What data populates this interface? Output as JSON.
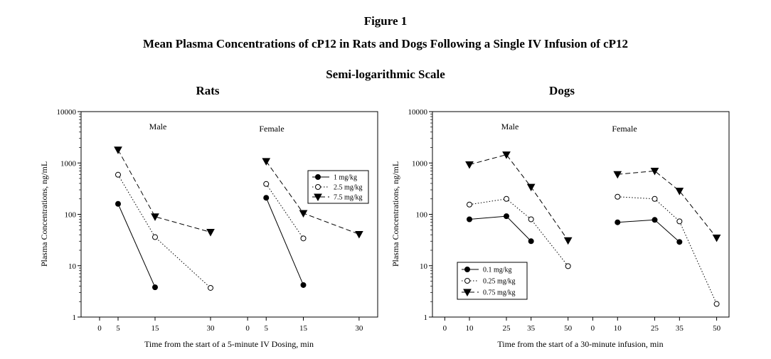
{
  "figure_label": "Figure 1",
  "title": "Mean Plasma Concentrations of cP12 in Rats and Dogs Following a Single IV Infusion of cP12",
  "subtitle": "Semi-logarithmic Scale",
  "chart_data": [
    {
      "type": "line",
      "title": "Rats",
      "xlabel": "Time from the start of a 5-minute IV Dosing, min",
      "ylabel": "Plasma Concentrations, ng/mL",
      "yscale": "log",
      "ylim": [
        1,
        10000
      ],
      "yticks": [
        "1",
        "10",
        "100",
        "1000",
        "10000"
      ],
      "grid": false,
      "legend_position": "right",
      "panels": [
        {
          "label": "Male",
          "xticks": [
            "0",
            "5",
            "15",
            "30"
          ],
          "xlim": [
            -5,
            35
          ]
        },
        {
          "label": "Female",
          "xticks": [
            "0",
            "5",
            "15",
            "30"
          ],
          "xlim": [
            -5,
            35
          ]
        }
      ],
      "series": [
        {
          "name": "1 mg/kg",
          "marker": "filled-circle",
          "line": "solid",
          "male": {
            "x": [
              5,
              15
            ],
            "y": [
              160,
              3.8
            ]
          },
          "female": {
            "x": [
              5,
              15
            ],
            "y": [
              210,
              4.2
            ]
          }
        },
        {
          "name": "2.5 mg/kg",
          "marker": "open-circle",
          "line": "dotted",
          "male": {
            "x": [
              5,
              15,
              30
            ],
            "y": [
              590,
              36,
              3.7
            ]
          },
          "female": {
            "x": [
              5,
              15
            ],
            "y": [
              390,
              34
            ]
          }
        },
        {
          "name": "7.5 mg/kg",
          "marker": "filled-triangle-down",
          "line": "dashed",
          "male": {
            "x": [
              5,
              15,
              30
            ],
            "y": [
              1800,
              90,
              45
            ]
          },
          "female": {
            "x": [
              5,
              15,
              30
            ],
            "y": [
              1080,
              105,
              41
            ]
          }
        }
      ]
    },
    {
      "type": "line",
      "title": "Dogs",
      "xlabel": "Time from the start of a 30-minute infusion, min",
      "ylabel": "Plasma Concentrations, ng/mL",
      "yscale": "log",
      "ylim": [
        1,
        10000
      ],
      "yticks": [
        "1",
        "10",
        "100",
        "1000",
        "10000"
      ],
      "grid": false,
      "legend_position": "bottom-left",
      "panels": [
        {
          "label": "Male",
          "xticks": [
            "0",
            "10",
            "25",
            "35",
            "50"
          ],
          "xlim": [
            -5,
            55
          ]
        },
        {
          "label": "Female",
          "xticks": [
            "0",
            "10",
            "25",
            "35",
            "50"
          ],
          "xlim": [
            -5,
            55
          ]
        }
      ],
      "series": [
        {
          "name": "0.1 mg/kg",
          "marker": "filled-circle",
          "line": "solid",
          "male": {
            "x": [
              10,
              25,
              35
            ],
            "y": [
              80,
              92,
              30
            ]
          },
          "female": {
            "x": [
              10,
              25,
              35
            ],
            "y": [
              70,
              78,
              29
            ]
          }
        },
        {
          "name": "0.25 mg/kg",
          "marker": "open-circle",
          "line": "dotted",
          "male": {
            "x": [
              10,
              25,
              35,
              50
            ],
            "y": [
              155,
              200,
              80,
              9.8
            ]
          },
          "female": {
            "x": [
              10,
              25,
              35,
              50
            ],
            "y": [
              220,
              200,
              73,
              1.8
            ]
          }
        },
        {
          "name": "0.75 mg/kg",
          "marker": "filled-triangle-down",
          "line": "dashed",
          "male": {
            "x": [
              10,
              25,
              35,
              50
            ],
            "y": [
              930,
              1450,
              340,
              31
            ]
          },
          "female": {
            "x": [
              10,
              25,
              35,
              50
            ],
            "y": [
              600,
              700,
              285,
              35
            ]
          }
        }
      ]
    }
  ]
}
